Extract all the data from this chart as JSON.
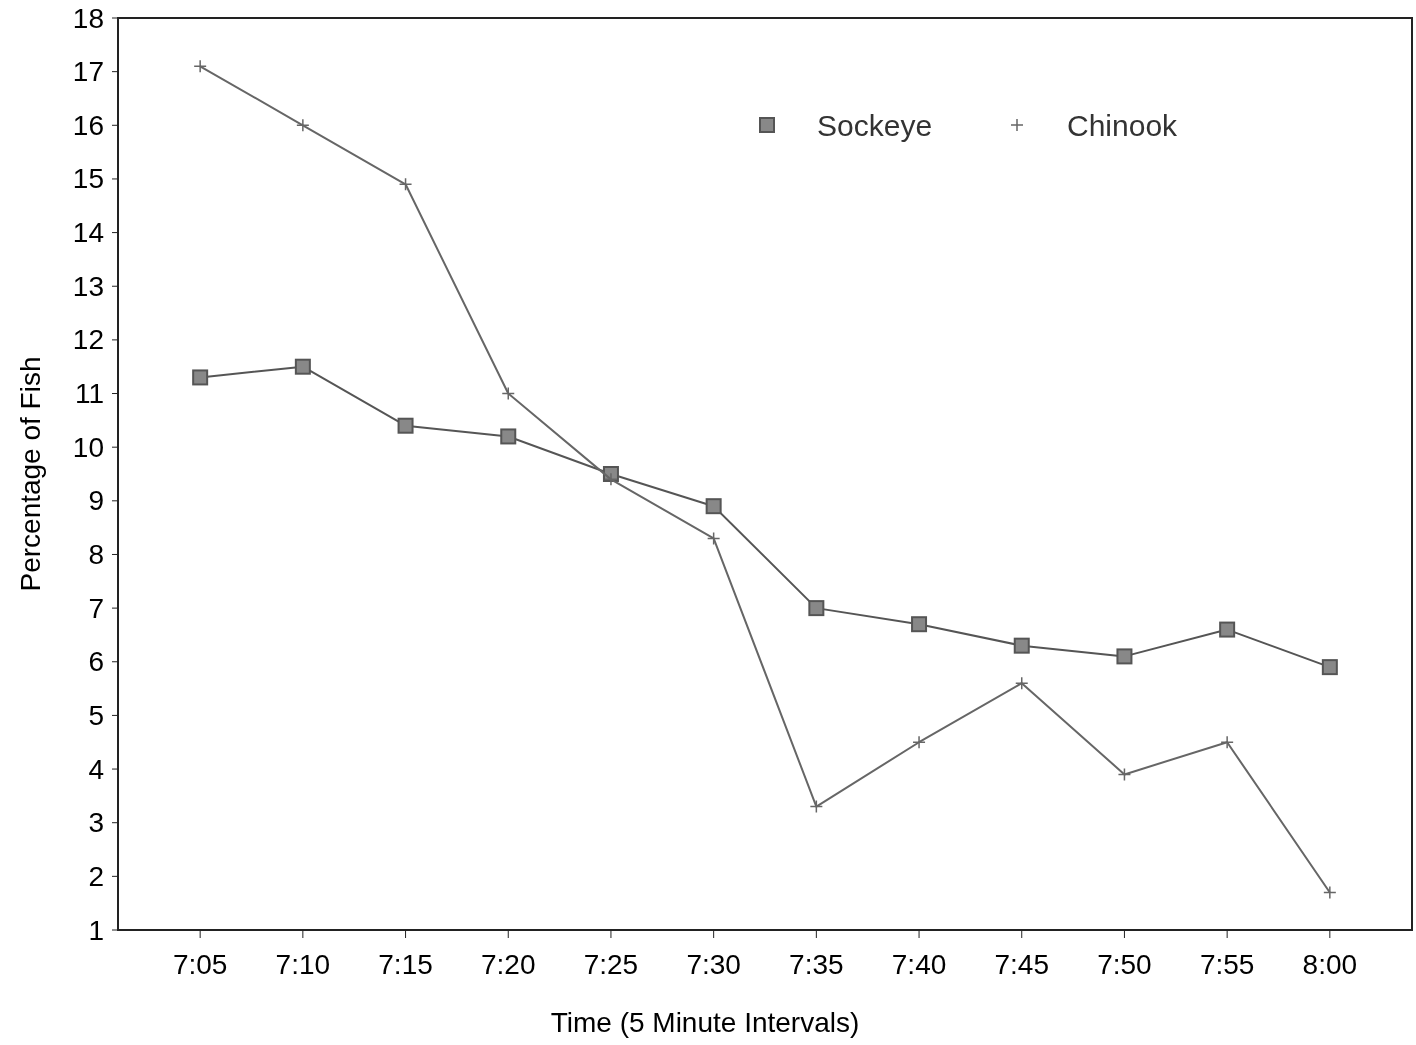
{
  "chart_data": {
    "type": "line",
    "xlabel": "Time (5 Minute Intervals)",
    "ylabel": "Percentage of Fish",
    "categories": [
      "7:05",
      "7:10",
      "7:15",
      "7:20",
      "7:25",
      "7:30",
      "7:35",
      "7:40",
      "7:45",
      "7:50",
      "7:55",
      "8:00"
    ],
    "series": [
      {
        "name": "Sockeye",
        "color": "#555555",
        "marker": "square",
        "values": [
          11.3,
          11.5,
          10.4,
          10.2,
          9.5,
          8.9,
          7.0,
          6.7,
          6.3,
          6.1,
          6.6,
          5.9
        ]
      },
      {
        "name": "Chinook",
        "color": "#666666",
        "marker": "cross",
        "values": [
          17.1,
          16.0,
          14.9,
          11.0,
          9.4,
          8.3,
          3.3,
          4.5,
          5.6,
          3.9,
          4.5,
          1.7
        ]
      }
    ],
    "ylim": [
      1,
      18
    ],
    "yticks": [
      1,
      2,
      3,
      4,
      5,
      6,
      7,
      8,
      9,
      10,
      11,
      12,
      13,
      14,
      15,
      16,
      17,
      18
    ],
    "grid": false,
    "legend": "top right",
    "line_style": "solid"
  }
}
